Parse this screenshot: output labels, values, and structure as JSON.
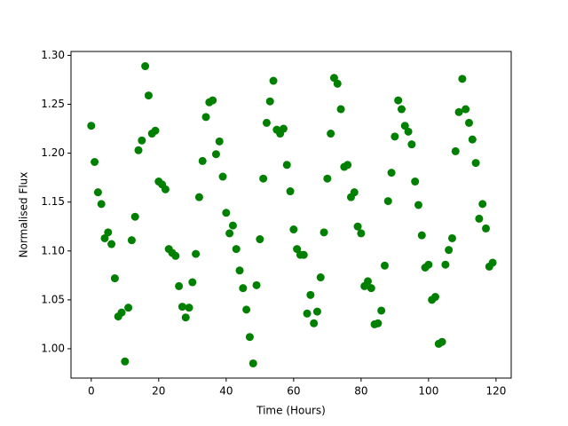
{
  "chart_data": {
    "type": "scatter",
    "x_label": "Time (Hours)",
    "y_label": "Normalised Flux",
    "color": "#008000",
    "x": [
      0,
      1,
      2,
      3,
      4,
      5,
      6,
      7,
      8,
      9,
      10,
      11,
      12,
      13,
      14,
      15,
      16,
      17,
      18,
      19,
      20,
      21,
      22,
      23,
      24,
      25,
      26,
      27,
      28,
      29,
      30,
      31,
      32,
      33,
      34,
      35,
      36,
      37,
      38,
      39,
      40,
      41,
      42,
      43,
      44,
      45,
      46,
      47,
      48,
      49,
      50,
      51,
      52,
      53,
      54,
      55,
      56,
      57,
      58,
      59,
      60,
      61,
      62,
      63,
      64,
      65,
      66,
      67,
      68,
      69,
      70,
      71,
      72,
      73,
      74,
      75,
      76,
      77,
      78,
      79,
      80,
      81,
      82,
      83,
      84,
      85,
      86,
      87,
      88,
      89,
      90,
      91,
      92,
      93,
      94,
      95,
      96,
      97,
      98,
      99,
      100,
      101,
      102,
      103,
      104,
      105,
      106,
      107,
      108,
      109,
      110,
      111,
      112,
      113,
      114,
      115,
      116,
      117,
      118,
      119
    ],
    "values": [
      1.228,
      1.191,
      1.16,
      1.148,
      1.113,
      1.119,
      1.107,
      1.072,
      1.033,
      1.037,
      0.987,
      1.042,
      1.111,
      1.135,
      1.203,
      1.213,
      1.289,
      1.259,
      1.22,
      1.223,
      1.171,
      1.168,
      1.163,
      1.102,
      1.098,
      1.095,
      1.064,
      1.043,
      1.032,
      1.042,
      1.068,
      1.097,
      1.155,
      1.192,
      1.237,
      1.252,
      1.254,
      1.199,
      1.212,
      1.176,
      1.139,
      1.118,
      1.126,
      1.102,
      1.08,
      1.062,
      1.04,
      1.012,
      0.985,
      1.065,
      1.112,
      1.174,
      1.231,
      1.253,
      1.274,
      1.224,
      1.22,
      1.225,
      1.188,
      1.161,
      1.122,
      1.102,
      1.096,
      1.096,
      1.036,
      1.055,
      1.026,
      1.038,
      1.073,
      1.119,
      1.174,
      1.22,
      1.277,
      1.271,
      1.245,
      1.186,
      1.188,
      1.155,
      1.16,
      1.125,
      1.118,
      1.064,
      1.069,
      1.062,
      1.025,
      1.026,
      1.039,
      1.085,
      1.151,
      1.18,
      1.217,
      1.254,
      1.245,
      1.228,
      1.222,
      1.209,
      1.171,
      1.147,
      1.116,
      1.083,
      1.086,
      1.05,
      1.053,
      1.005,
      1.007,
      1.086,
      1.101,
      1.113,
      1.202,
      1.242,
      1.276,
      1.245,
      1.231,
      1.214,
      1.19,
      1.133,
      1.148,
      1.123,
      1.084,
      1.088
    ],
    "xlim": [
      -6,
      124.5
    ],
    "ylim": [
      0.97,
      1.304
    ],
    "xticks": [
      0,
      20,
      40,
      60,
      80,
      100,
      120
    ],
    "yticks": [
      {
        "value": 1.0,
        "label": "1.00"
      },
      {
        "value": 1.05,
        "label": "1.05"
      },
      {
        "value": 1.1,
        "label": "1.10"
      },
      {
        "value": 1.15,
        "label": "1.15"
      },
      {
        "value": 1.2,
        "label": "1.20"
      },
      {
        "value": 1.25,
        "label": "1.25"
      },
      {
        "value": 1.3,
        "label": "1.30"
      }
    ],
    "grid": false
  }
}
